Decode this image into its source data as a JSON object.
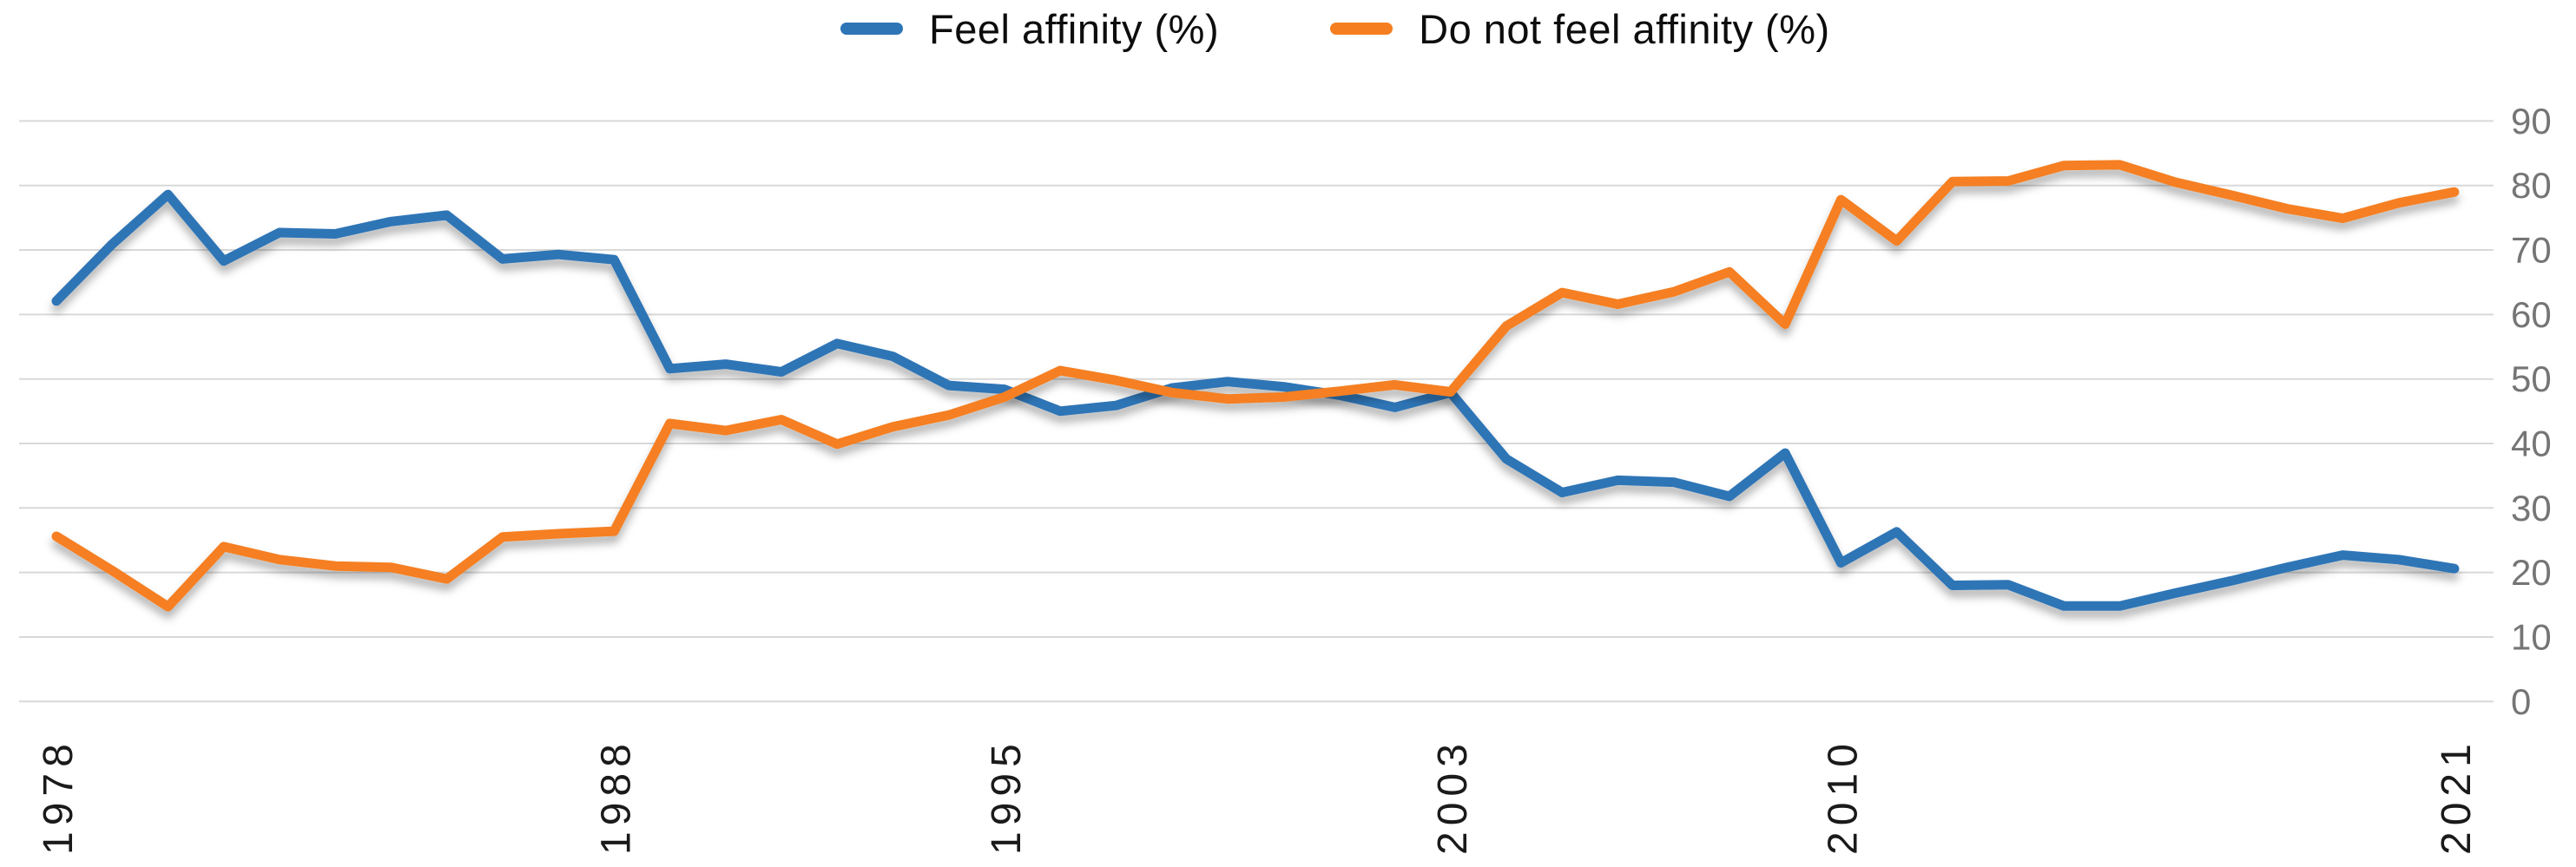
{
  "legend": {
    "items": [
      {
        "label": "Feel affinity (%)"
      },
      {
        "label": "Do not feel affinity (%)"
      }
    ]
  },
  "colors": {
    "feel_affinity": "#2e75b6",
    "do_not_feel_affinity": "#f57f20",
    "gridline": "#d9d9d9",
    "y_tick_label": "#757575",
    "x_tick_label": "#1a1a1a"
  },
  "chart_data": {
    "type": "line",
    "title": "",
    "xlabel": "",
    "ylabel": "",
    "ylim": [
      0,
      90
    ],
    "grid": "horizontal",
    "legend_position": "top-center",
    "x": [
      1978,
      1979,
      1980,
      1981,
      1982,
      1983,
      1984,
      1985,
      1986,
      1987,
      1988,
      1989,
      1990,
      1991,
      1992,
      1993,
      1994,
      1995,
      1996,
      1997,
      1998,
      1999,
      2000,
      2001,
      2002,
      2003,
      2004,
      2005,
      2006,
      2007,
      2008,
      2009,
      2010,
      2011,
      2012,
      2013,
      2014,
      2015,
      2016,
      2017,
      2018,
      2019,
      2020,
      2021
    ],
    "series": [
      {
        "name": "Feel affinity (%)",
        "color": "#2e75b6",
        "values": [
          62.1,
          70.9,
          78.6,
          68.3,
          72.7,
          72.5,
          74.4,
          75.4,
          68.6,
          69.3,
          68.5,
          51.6,
          52.3,
          51.1,
          55.5,
          53.5,
          49.0,
          48.4,
          45.0,
          45.9,
          48.6,
          49.6,
          48.8,
          47.5,
          45.6,
          47.9,
          37.6,
          32.4,
          34.3,
          34.0,
          31.8,
          38.5,
          21.5,
          26.3,
          18.0,
          18.1,
          14.8,
          14.8,
          16.8,
          18.7,
          20.8,
          22.7,
          22.0,
          20.6
        ]
      },
      {
        "name": "Do not feel affinity (%)",
        "color": "#f57f20",
        "values": [
          25.6,
          20.3,
          14.7,
          24.0,
          22.0,
          21.0,
          20.8,
          19.0,
          25.5,
          26.0,
          26.4,
          43.1,
          42.0,
          43.7,
          39.9,
          42.6,
          44.4,
          47.2,
          51.3,
          49.8,
          47.9,
          46.9,
          47.2,
          48.1,
          49.1,
          48.0,
          58.2,
          63.4,
          61.6,
          63.5,
          66.6,
          58.5,
          77.8,
          71.4,
          80.6,
          80.7,
          83.1,
          83.2,
          80.5,
          78.5,
          76.4,
          74.9,
          77.3,
          79.0
        ]
      }
    ],
    "x_tick_years": [
      1978,
      1988,
      1995,
      2003,
      2010,
      2021
    ],
    "x_tick_labels": [
      "1978",
      "1988",
      "1995",
      "2003",
      "2010",
      "2021"
    ],
    "y_ticks": [
      90,
      80,
      70,
      60,
      50,
      40,
      30,
      20,
      10,
      0
    ]
  }
}
